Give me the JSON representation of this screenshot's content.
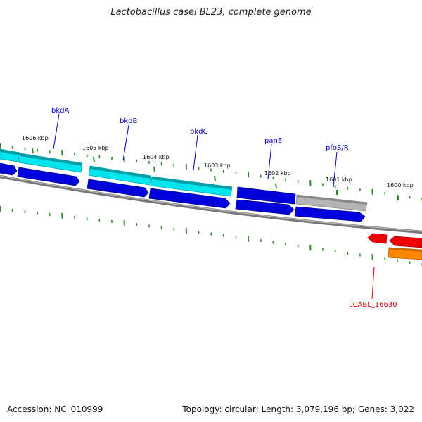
{
  "title": "Lactobacillus casei BL23, complete genome",
  "footer": {
    "accession": "Accession: NC_010999",
    "info": "Topology: circular; Length: 3,079,196 bp; Genes: 3,022"
  },
  "colors": {
    "background": "#ffffff",
    "backbone": "#808080",
    "tick": "#2e8b2e",
    "cyan_feature": "#00e5ee",
    "blue_feature": "#0000dd",
    "gray_feature": "#b4b4b4",
    "red_feature": "#ee0000",
    "orange_feature": "#ff8800",
    "label_blue": "#0000bb",
    "label_red": "#dd0000"
  },
  "position_labels": [
    "1606 kbp",
    "1605 kbp",
    "1604 kbp",
    "1603 kbp",
    "1602 kbp",
    "1601 kbp",
    "1600 kbp"
  ],
  "gene_labels": [
    {
      "text": "bkdA",
      "strand": "forward"
    },
    {
      "text": "bkdB",
      "strand": "forward"
    },
    {
      "text": "bkdC",
      "strand": "forward"
    },
    {
      "text": "panE",
      "strand": "forward"
    },
    {
      "text": "pfoS/R",
      "strand": "forward"
    },
    {
      "text": "LCABL_16630",
      "strand": "reverse"
    }
  ]
}
